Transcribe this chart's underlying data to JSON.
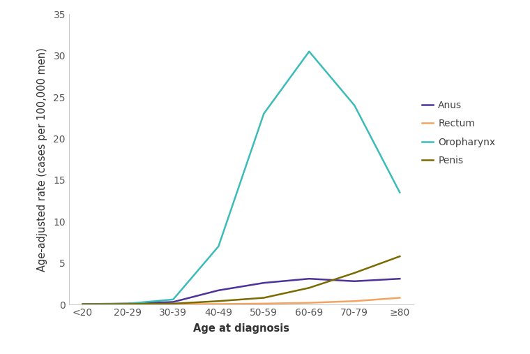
{
  "categories": [
    "<20",
    "20-29",
    "30-39",
    "40-49",
    "50-59",
    "60-69",
    "70-79",
    "≥80"
  ],
  "anus": [
    0.05,
    0.1,
    0.3,
    1.7,
    2.6,
    3.1,
    2.8,
    3.1
  ],
  "rectum": [
    0.0,
    0.0,
    0.05,
    0.05,
    0.1,
    0.2,
    0.4,
    0.8
  ],
  "oropharynx": [
    0.0,
    0.1,
    0.6,
    7.0,
    23.0,
    30.5,
    24.0,
    13.5
  ],
  "penis": [
    0.0,
    0.05,
    0.1,
    0.4,
    0.8,
    2.0,
    3.8,
    5.8
  ],
  "anus_color": "#4d3399",
  "rectum_color": "#f4a460",
  "oropharynx_color": "#3bbcb8",
  "penis_color": "#7a6a00",
  "xlabel": "Age at diagnosis",
  "ylabel": "Age-adjusted rate (cases per 100,000 men)",
  "ylim": [
    0,
    35
  ],
  "yticks": [
    0,
    5,
    10,
    15,
    20,
    25,
    30,
    35
  ],
  "legend_labels": [
    "Anus",
    "Rectum",
    "Oropharynx",
    "Penis"
  ],
  "background_color": "#ffffff",
  "linewidth": 1.8,
  "spine_color": "#cccccc",
  "tick_color": "#555555",
  "label_fontsize": 10.5,
  "tick_fontsize": 10
}
